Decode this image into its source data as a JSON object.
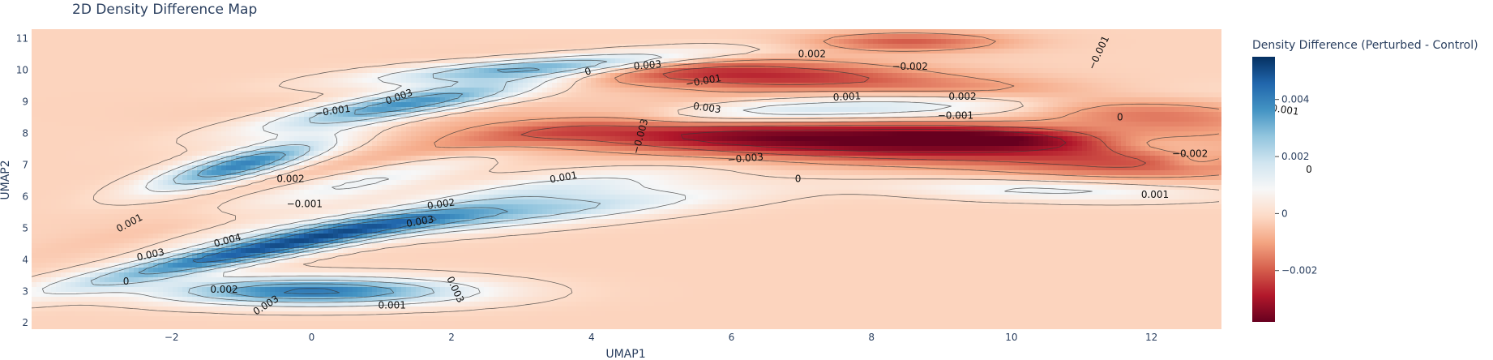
{
  "chart_data": {
    "type": "heatmap",
    "title": "2D Density Difference Map",
    "xlabel": "UMAP1",
    "ylabel": "UMAP2",
    "xlim": [
      -4,
      13
    ],
    "ylim": [
      1.8,
      11.3
    ],
    "x_ticks": [
      "−2",
      "0",
      "2",
      "4",
      "6",
      "8",
      "10",
      "12"
    ],
    "x_tick_values": [
      -2,
      0,
      2,
      4,
      6,
      8,
      10,
      12
    ],
    "y_ticks": [
      "2",
      "3",
      "4",
      "5",
      "6",
      "7",
      "8",
      "9",
      "10",
      "11"
    ],
    "y_tick_values": [
      2,
      3,
      4,
      5,
      6,
      7,
      8,
      9,
      10,
      11
    ],
    "colorbar": {
      "title": "Density Difference (Perturbed - Control)",
      "range": [
        -0.0038,
        0.0055
      ],
      "ticks": [
        "0.004",
        "0.002",
        "0",
        "−0.002"
      ],
      "tick_values": [
        0.004,
        0.002,
        0,
        -0.002
      ],
      "colorscale": [
        "#67001f",
        "#b2182b",
        "#d6604d",
        "#f4a582",
        "#fddbc7",
        "#f7f7f7",
        "#d1e5f0",
        "#92c5de",
        "#4393c3",
        "#2166ac",
        "#053061"
      ]
    },
    "baseline_value": -0.0002,
    "components": [
      {
        "cx": -0.8,
        "cy": 4.3,
        "sx": 1.9,
        "sy": 0.25,
        "angle_deg": 23,
        "amp": 0.0048
      },
      {
        "cx": -1.0,
        "cy": 7.0,
        "sx": 1.0,
        "sy": 0.28,
        "angle_deg": 30,
        "amp": 0.0042
      },
      {
        "cx": 1.3,
        "cy": 8.9,
        "sx": 1.4,
        "sy": 0.28,
        "angle_deg": 20,
        "amp": 0.0041
      },
      {
        "cx": 3.3,
        "cy": 10.1,
        "sx": 1.6,
        "sy": 0.22,
        "angle_deg": 9,
        "amp": 0.0037
      },
      {
        "cx": 0.5,
        "cy": 6.3,
        "sx": 1.8,
        "sy": 0.35,
        "angle_deg": 28,
        "amp": 0.0022
      },
      {
        "cx": 2.5,
        "cy": 5.4,
        "sx": 2.2,
        "sy": 0.3,
        "angle_deg": 11,
        "amp": 0.0028
      },
      {
        "cx": 3.5,
        "cy": 6.3,
        "sx": 1.5,
        "sy": 0.3,
        "angle_deg": 12,
        "amp": 0.0014
      },
      {
        "cx": 0.0,
        "cy": 3.0,
        "sx": 1.5,
        "sy": 0.3,
        "angle_deg": 0,
        "amp": 0.0044
      },
      {
        "cx": 7.0,
        "cy": 8.7,
        "sx": 2.8,
        "sy": 0.28,
        "angle_deg": 5,
        "amp": 0.0022
      },
      {
        "cx": 10.5,
        "cy": 6.2,
        "sx": 1.5,
        "sy": 0.22,
        "angle_deg": -3,
        "amp": 0.0014
      },
      {
        "cx": 12.1,
        "cy": 7.6,
        "sx": 0.7,
        "sy": 0.22,
        "angle_deg": -10,
        "amp": 0.0008
      },
      {
        "cx": 12.6,
        "cy": 7.1,
        "sx": 0.3,
        "sy": 0.15,
        "angle_deg": 0,
        "amp": 0.0006
      },
      {
        "cx": 7.3,
        "cy": 7.8,
        "sx": 3.3,
        "sy": 0.45,
        "angle_deg": -5,
        "amp": -0.0036
      },
      {
        "cx": 9.8,
        "cy": 7.9,
        "sx": 1.2,
        "sy": 0.25,
        "angle_deg": -4,
        "amp": -0.0016
      },
      {
        "cx": 6.0,
        "cy": 9.9,
        "sx": 1.8,
        "sy": 0.35,
        "angle_deg": -3,
        "amp": -0.0024
      },
      {
        "cx": 8.5,
        "cy": 10.9,
        "sx": 1.0,
        "sy": 0.22,
        "angle_deg": 0,
        "amp": -0.0018
      },
      {
        "cx": 2.3,
        "cy": 7.6,
        "sx": 2.5,
        "sy": 0.3,
        "angle_deg": 22,
        "amp": -0.0012
      },
      {
        "cx": -0.6,
        "cy": 5.6,
        "sx": 2.0,
        "sy": 0.3,
        "angle_deg": 24,
        "amp": -0.0012
      },
      {
        "cx": 12.0,
        "cy": 8.6,
        "sx": 1.4,
        "sy": 0.4,
        "angle_deg": -8,
        "amp": -0.0014
      },
      {
        "cx": 11.8,
        "cy": 6.9,
        "sx": 1.3,
        "sy": 0.3,
        "angle_deg": 0,
        "amp": -0.001
      },
      {
        "cx": 9.3,
        "cy": 9.4,
        "sx": 1.5,
        "sy": 0.3,
        "angle_deg": -5,
        "amp": -0.0009
      }
    ],
    "contour_levels": [
      -0.003,
      -0.002,
      -0.001,
      0,
      0.001,
      0.002,
      0.003,
      0.004
    ],
    "contour_labels": [
      {
        "text": "0",
        "x": 3.95,
        "y": 9.95,
        "angle_deg": -18
      },
      {
        "text": "0.003",
        "x": 4.8,
        "y": 10.15,
        "angle_deg": -5
      },
      {
        "text": "0.002",
        "x": 7.15,
        "y": 10.5,
        "angle_deg": 0
      },
      {
        "text": "−0.002",
        "x": 8.55,
        "y": 10.1,
        "angle_deg": 0
      },
      {
        "text": "−0.001",
        "x": 11.25,
        "y": 10.55,
        "angle_deg": -65
      },
      {
        "text": "−0.001",
        "x": 5.6,
        "y": 9.65,
        "angle_deg": -10
      },
      {
        "text": "0.003",
        "x": 1.25,
        "y": 9.15,
        "angle_deg": -20
      },
      {
        "text": "−0.001",
        "x": 0.3,
        "y": 8.7,
        "angle_deg": -8
      },
      {
        "text": "0.003",
        "x": 5.65,
        "y": 8.8,
        "angle_deg": 8
      },
      {
        "text": "0.001",
        "x": 7.65,
        "y": 9.15,
        "angle_deg": -3
      },
      {
        "text": "0.002",
        "x": 9.3,
        "y": 9.15,
        "angle_deg": 0
      },
      {
        "text": "−0.001",
        "x": 9.2,
        "y": 8.55,
        "angle_deg": 0
      },
      {
        "text": "0",
        "x": 11.55,
        "y": 8.5,
        "angle_deg": 0
      },
      {
        "text": "−0.001",
        "x": 13.85,
        "y": 8.75,
        "angle_deg": 8
      },
      {
        "text": "−0.003",
        "x": 4.7,
        "y": 7.9,
        "angle_deg": -75
      },
      {
        "text": "−0.003",
        "x": 6.2,
        "y": 7.2,
        "angle_deg": -5
      },
      {
        "text": "−0.002",
        "x": 12.55,
        "y": 7.35,
        "angle_deg": 0
      },
      {
        "text": "0",
        "x": 14.25,
        "y": 6.85,
        "angle_deg": 0
      },
      {
        "text": "0.002",
        "x": -0.3,
        "y": 6.55,
        "angle_deg": 0
      },
      {
        "text": "0.001",
        "x": 3.6,
        "y": 6.6,
        "angle_deg": -10
      },
      {
        "text": "0",
        "x": 6.95,
        "y": 6.55,
        "angle_deg": 0
      },
      {
        "text": "0.001",
        "x": 12.05,
        "y": 6.05,
        "angle_deg": 0
      },
      {
        "text": "−0.001",
        "x": -0.1,
        "y": 5.75,
        "angle_deg": 0
      },
      {
        "text": "0.002",
        "x": 1.85,
        "y": 5.75,
        "angle_deg": -8
      },
      {
        "text": "0.003",
        "x": 1.55,
        "y": 5.2,
        "angle_deg": -10
      },
      {
        "text": "0.001",
        "x": -2.6,
        "y": 5.15,
        "angle_deg": -28
      },
      {
        "text": "0.004",
        "x": -1.2,
        "y": 4.6,
        "angle_deg": -15
      },
      {
        "text": "0.003",
        "x": -2.3,
        "y": 4.15,
        "angle_deg": -12
      },
      {
        "text": "0",
        "x": -2.65,
        "y": 3.3,
        "angle_deg": 0
      },
      {
        "text": "0.002",
        "x": -1.25,
        "y": 3.05,
        "angle_deg": 0
      },
      {
        "text": "0.003",
        "x": -0.65,
        "y": 2.55,
        "angle_deg": -32
      },
      {
        "text": "0.001",
        "x": 1.15,
        "y": 2.55,
        "angle_deg": 0
      },
      {
        "text": "0.003",
        "x": 2.05,
        "y": 3.05,
        "angle_deg": 65
      }
    ]
  }
}
